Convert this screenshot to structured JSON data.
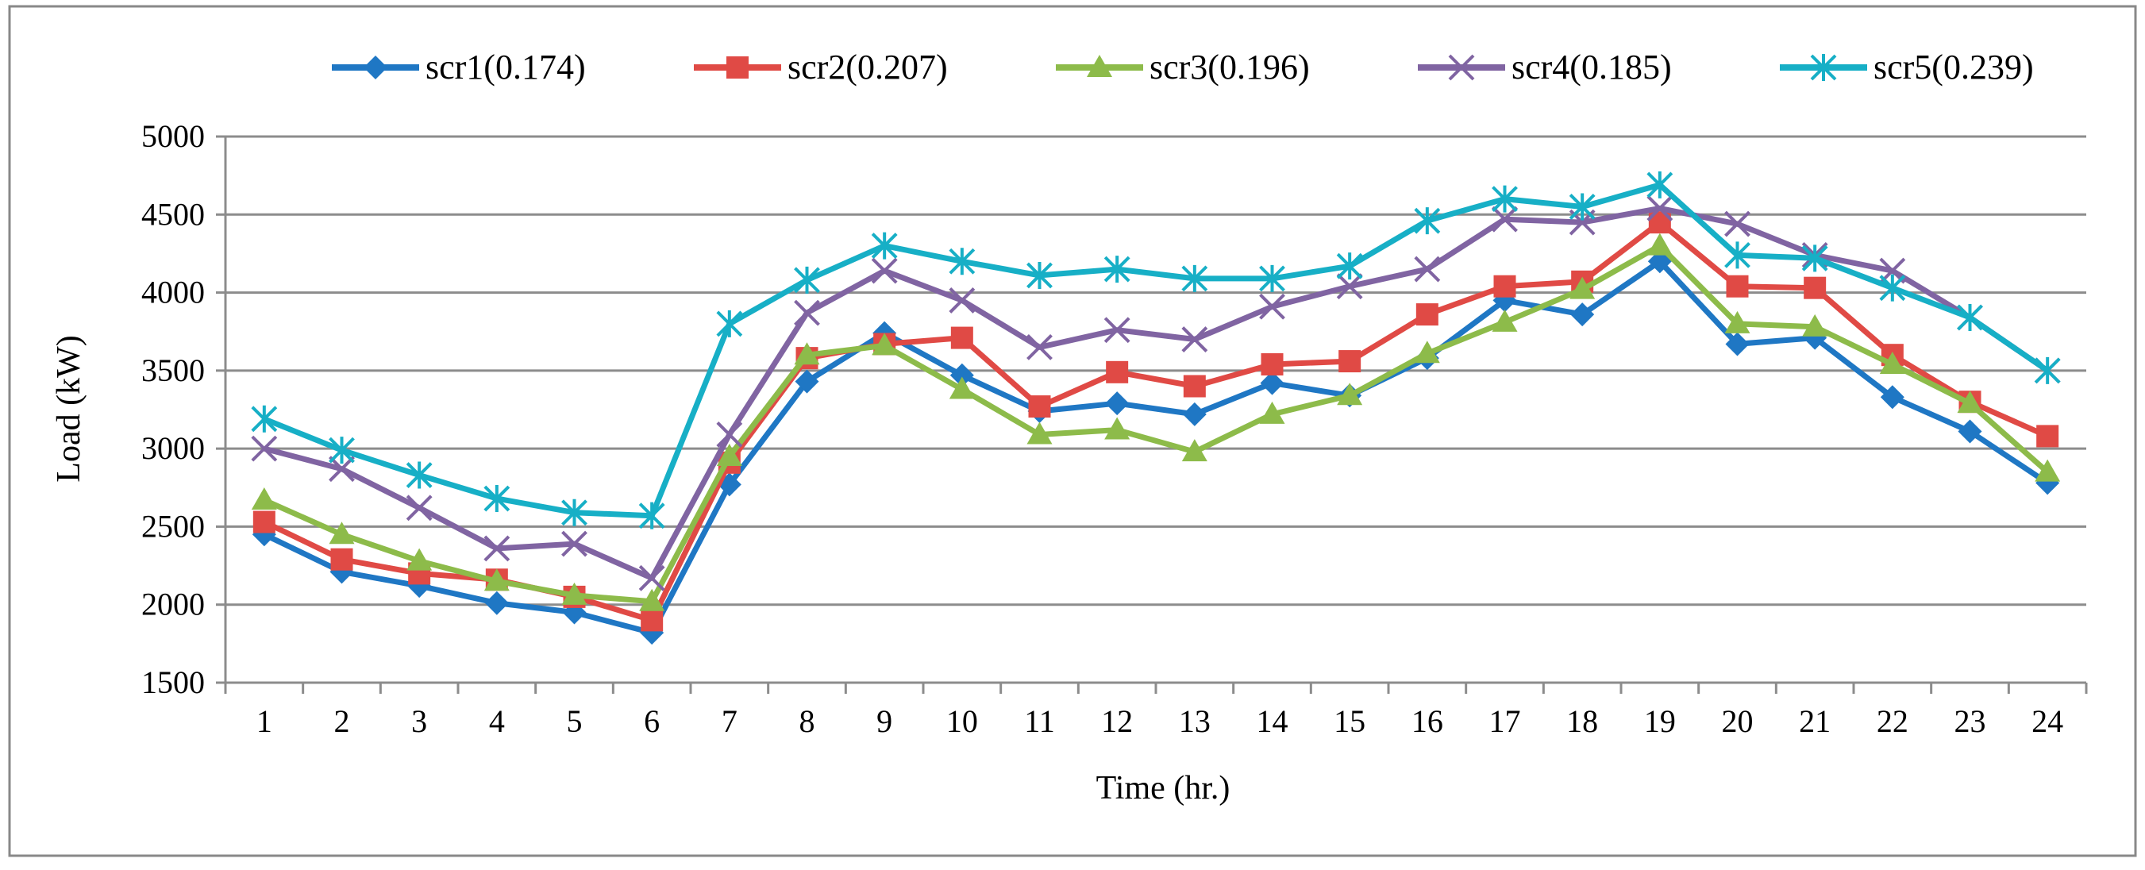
{
  "chart_data": {
    "type": "line",
    "title": "",
    "xlabel": "Time (hr.)",
    "ylabel": "Load (kW)",
    "ylim": [
      1500,
      5000
    ],
    "yticks": [
      1500,
      2000,
      2500,
      3000,
      3500,
      4000,
      4500,
      5000
    ],
    "ytick_labels": [
      "1500",
      "2000",
      "2500",
      "3000",
      "3500",
      "4000",
      "4500",
      "5000"
    ],
    "categories": [
      "1",
      "2",
      "3",
      "4",
      "5",
      "6",
      "7",
      "8",
      "9",
      "10",
      "11",
      "12",
      "13",
      "14",
      "15",
      "16",
      "17",
      "18",
      "19",
      "20",
      "21",
      "22",
      "23",
      "24"
    ],
    "grid": true,
    "legend_position": "top",
    "series": [
      {
        "name": "scr1(0.174)",
        "color": "#1F77C4",
        "marker": "diamond",
        "values": [
          2450,
          2210,
          2120,
          2010,
          1950,
          1820,
          2770,
          3430,
          3740,
          3470,
          3240,
          3290,
          3220,
          3420,
          3340,
          3580,
          3950,
          3860,
          4200,
          3670,
          3710,
          3330,
          3110,
          2780
        ]
      },
      {
        "name": "scr2(0.207)",
        "color": "#E04A45",
        "marker": "square",
        "values": [
          2530,
          2290,
          2200,
          2160,
          2050,
          1900,
          2910,
          3580,
          3670,
          3710,
          3270,
          3490,
          3400,
          3540,
          3560,
          3860,
          4040,
          4070,
          4450,
          4040,
          4030,
          3600,
          3300,
          3080
        ]
      },
      {
        "name": "scr3(0.196)",
        "color": "#8DBB4A",
        "marker": "triangle",
        "values": [
          2670,
          2450,
          2280,
          2150,
          2060,
          2020,
          2950,
          3600,
          3660,
          3380,
          3090,
          3120,
          2980,
          3220,
          3340,
          3610,
          3810,
          4020,
          4300,
          3800,
          3780,
          3540,
          3290,
          2850
        ]
      },
      {
        "name": "scr4(0.185)",
        "color": "#8064A2",
        "marker": "x",
        "values": [
          3000,
          2870,
          2620,
          2360,
          2390,
          2170,
          3090,
          3870,
          4140,
          3950,
          3650,
          3760,
          3700,
          3910,
          4040,
          4150,
          4470,
          4450,
          4540,
          4440,
          4240,
          4140,
          3840,
          3500
        ]
      },
      {
        "name": "scr5(0.239)",
        "color": "#17AFC6",
        "marker": "asterisk",
        "values": [
          3190,
          2990,
          2830,
          2680,
          2590,
          2570,
          3800,
          4080,
          4300,
          4200,
          4110,
          4150,
          4090,
          4090,
          4170,
          4460,
          4600,
          4550,
          4690,
          4240,
          4220,
          4030,
          3840,
          3500
        ]
      }
    ]
  }
}
